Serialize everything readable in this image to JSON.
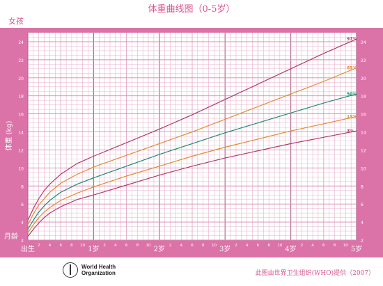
{
  "page": {
    "title": "体重曲线图（0-5岁）",
    "subtitle": "女孩",
    "credit": "此图由世界卫生组织(WHO)提供（2007）",
    "who_name": "World Health",
    "who_name2": "Organization"
  },
  "colors": {
    "frame": "#dc73a8",
    "plot_bg": "#ffffff",
    "grid": "#e2a3c3",
    "p97": "#b23a6e",
    "p85": "#e38a32",
    "p50": "#1f8a74",
    "p15": "#e38a32",
    "p3": "#b23a6e",
    "text": "#ffffff"
  },
  "chart_data": {
    "type": "line",
    "title": "体重曲线图（0-5岁）",
    "xlabel": "月龄",
    "ylabel": "体重 (kg)",
    "xlim": [
      0,
      60
    ],
    "ylim": [
      2,
      25
    ],
    "y_ticks": [
      2,
      4,
      6,
      8,
      10,
      12,
      14,
      16,
      18,
      20,
      22,
      24
    ],
    "x_year_labels": [
      {
        "month": 0,
        "label": "出生"
      },
      {
        "month": 12,
        "label": "1岁"
      },
      {
        "month": 24,
        "label": "2岁"
      },
      {
        "month": 36,
        "label": "3岁"
      },
      {
        "month": 48,
        "label": "4岁"
      },
      {
        "month": 60,
        "label": "5岁"
      }
    ],
    "x_month_ticks": [
      2,
      4,
      6,
      8,
      10
    ],
    "grid": true,
    "x": [
      0,
      1,
      2,
      3,
      4,
      6,
      9,
      12,
      18,
      24,
      30,
      36,
      42,
      48,
      54,
      60
    ],
    "series": [
      {
        "name": "97%",
        "values": [
          4.2,
          5.5,
          6.6,
          7.5,
          8.2,
          9.3,
          10.5,
          11.3,
          12.8,
          14.3,
          15.9,
          17.6,
          19.3,
          21.0,
          22.7,
          24.3
        ]
      },
      {
        "name": "85%",
        "values": [
          3.7,
          4.9,
          5.9,
          6.6,
          7.3,
          8.3,
          9.3,
          10.1,
          11.4,
          12.7,
          14.0,
          15.4,
          16.8,
          18.2,
          19.6,
          21.1
        ]
      },
      {
        "name": "50%",
        "values": [
          3.2,
          4.2,
          5.1,
          5.8,
          6.4,
          7.3,
          8.2,
          8.9,
          10.2,
          11.5,
          12.7,
          13.9,
          15.0,
          16.1,
          17.2,
          18.2
        ]
      },
      {
        "name": "15%",
        "values": [
          2.8,
          3.7,
          4.5,
          5.1,
          5.6,
          6.4,
          7.2,
          7.9,
          9.1,
          10.2,
          11.3,
          12.3,
          13.2,
          14.1,
          14.9,
          15.7
        ]
      },
      {
        "name": "3%",
        "values": [
          2.4,
          3.2,
          3.9,
          4.5,
          5.0,
          5.7,
          6.5,
          7.0,
          8.1,
          9.2,
          10.2,
          11.1,
          11.9,
          12.7,
          13.4,
          14.1
        ]
      }
    ]
  }
}
